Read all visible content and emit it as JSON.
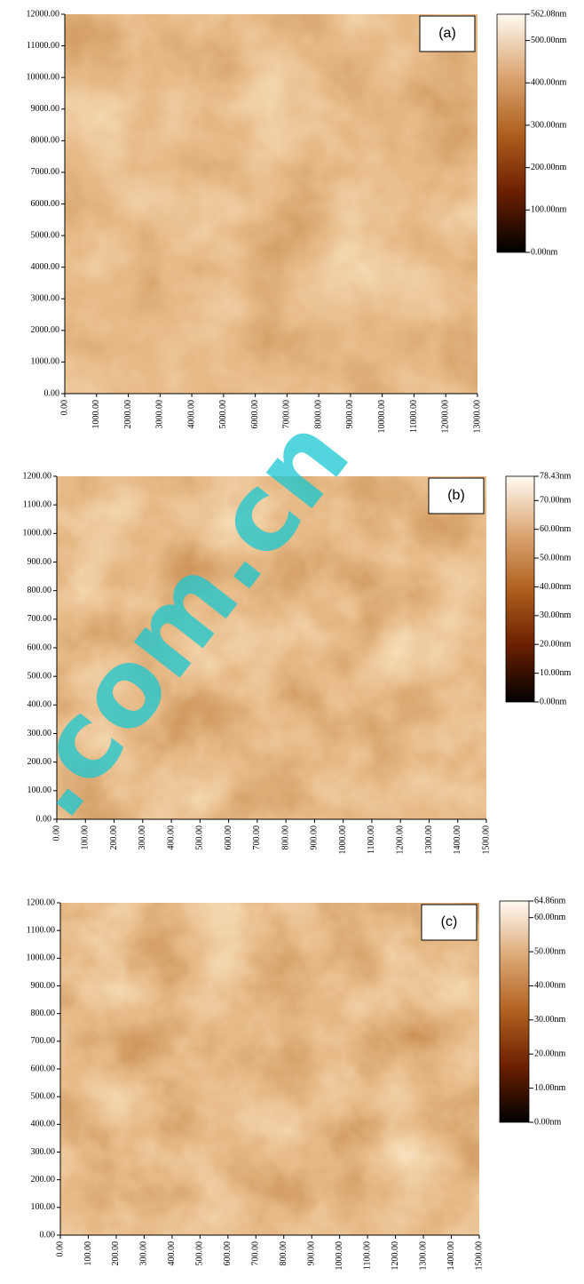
{
  "chart_data": [
    {
      "type": "image",
      "panel_label": "(a)",
      "xlim": [
        0,
        13000
      ],
      "ylim": [
        0,
        12000
      ],
      "zlim": [
        0,
        562.08
      ],
      "xticks": [
        {
          "value": 0,
          "label": "0.00"
        },
        {
          "value": 1000,
          "label": "1000.00"
        },
        {
          "value": 2000,
          "label": "2000.00"
        },
        {
          "value": 3000,
          "label": "3000.00"
        },
        {
          "value": 4000,
          "label": "4000.00"
        },
        {
          "value": 5000,
          "label": "5000.00"
        },
        {
          "value": 6000,
          "label": "6000.00"
        },
        {
          "value": 7000,
          "label": "7000.00"
        },
        {
          "value": 8000,
          "label": "8000.00"
        },
        {
          "value": 9000,
          "label": "9000.00"
        },
        {
          "value": 10000,
          "label": "10000.00"
        },
        {
          "value": 11000,
          "label": "11000.00"
        },
        {
          "value": 12000,
          "label": "12000.00"
        },
        {
          "value": 13000,
          "label": "13000.00"
        }
      ],
      "yticks": [
        {
          "value": 0,
          "label": "0.00"
        },
        {
          "value": 1000,
          "label": "1000.00"
        },
        {
          "value": 2000,
          "label": "2000.00"
        },
        {
          "value": 3000,
          "label": "3000.00"
        },
        {
          "value": 4000,
          "label": "4000.00"
        },
        {
          "value": 5000,
          "label": "5000.00"
        },
        {
          "value": 6000,
          "label": "6000.00"
        },
        {
          "value": 7000,
          "label": "7000.00"
        },
        {
          "value": 8000,
          "label": "8000.00"
        },
        {
          "value": 9000,
          "label": "9000.00"
        },
        {
          "value": 10000,
          "label": "10000.00"
        },
        {
          "value": 11000,
          "label": "11000.00"
        },
        {
          "value": 12000,
          "label": "12000.00"
        }
      ],
      "zticks": [
        {
          "value": 0,
          "label": "0.00nm"
        },
        {
          "value": 100,
          "label": "100.00nm"
        },
        {
          "value": 200,
          "label": "200.00nm"
        },
        {
          "value": 300,
          "label": "300.00nm"
        },
        {
          "value": 400,
          "label": "400.00nm"
        },
        {
          "value": 500,
          "label": "500.00nm"
        },
        {
          "value": 562.08,
          "label": "562.08nm"
        }
      ]
    },
    {
      "type": "image",
      "panel_label": "(b)",
      "xlim": [
        0,
        1500
      ],
      "ylim": [
        0,
        1200
      ],
      "zlim": [
        0,
        78.43
      ],
      "xticks": [
        {
          "value": 0,
          "label": "0.00"
        },
        {
          "value": 100,
          "label": "100.00"
        },
        {
          "value": 200,
          "label": "200.00"
        },
        {
          "value": 300,
          "label": "300.00"
        },
        {
          "value": 400,
          "label": "400.00"
        },
        {
          "value": 500,
          "label": "500.00"
        },
        {
          "value": 600,
          "label": "600.00"
        },
        {
          "value": 700,
          "label": "700.00"
        },
        {
          "value": 800,
          "label": "800.00"
        },
        {
          "value": 900,
          "label": "900.00"
        },
        {
          "value": 1000,
          "label": "1000.00"
        },
        {
          "value": 1100,
          "label": "1100.00"
        },
        {
          "value": 1200,
          "label": "1200.00"
        },
        {
          "value": 1300,
          "label": "1300.00"
        },
        {
          "value": 1400,
          "label": "1400.00"
        },
        {
          "value": 1500,
          "label": "1500.00"
        }
      ],
      "yticks": [
        {
          "value": 0,
          "label": "0.00"
        },
        {
          "value": 100,
          "label": "100.00"
        },
        {
          "value": 200,
          "label": "200.00"
        },
        {
          "value": 300,
          "label": "300.00"
        },
        {
          "value": 400,
          "label": "400.00"
        },
        {
          "value": 500,
          "label": "500.00"
        },
        {
          "value": 600,
          "label": "600.00"
        },
        {
          "value": 700,
          "label": "700.00"
        },
        {
          "value": 800,
          "label": "800.00"
        },
        {
          "value": 900,
          "label": "900.00"
        },
        {
          "value": 1000,
          "label": "1000.00"
        },
        {
          "value": 1100,
          "label": "1100.00"
        },
        {
          "value": 1200,
          "label": "1200.00"
        }
      ],
      "zticks": [
        {
          "value": 0,
          "label": "0.00nm"
        },
        {
          "value": 10,
          "label": "10.00nm"
        },
        {
          "value": 20,
          "label": "20.00nm"
        },
        {
          "value": 30,
          "label": "30.00nm"
        },
        {
          "value": 40,
          "label": "40.00nm"
        },
        {
          "value": 50,
          "label": "50.00nm"
        },
        {
          "value": 60,
          "label": "60.00nm"
        },
        {
          "value": 70,
          "label": "70.00nm"
        },
        {
          "value": 78.43,
          "label": "78.43nm"
        }
      ]
    },
    {
      "type": "image",
      "panel_label": "(c)",
      "xlim": [
        0,
        1500
      ],
      "ylim": [
        0,
        1200
      ],
      "zlim": [
        0,
        64.86
      ],
      "xticks": [
        {
          "value": 0,
          "label": "0.00"
        },
        {
          "value": 100,
          "label": "100.00"
        },
        {
          "value": 200,
          "label": "200.00"
        },
        {
          "value": 300,
          "label": "300.00"
        },
        {
          "value": 400,
          "label": "400.00"
        },
        {
          "value": 500,
          "label": "500.00"
        },
        {
          "value": 600,
          "label": "600.00"
        },
        {
          "value": 700,
          "label": "700.00"
        },
        {
          "value": 800,
          "label": "800.00"
        },
        {
          "value": 900,
          "label": "900.00"
        },
        {
          "value": 1000,
          "label": "1000.00"
        },
        {
          "value": 1100,
          "label": "1100.00"
        },
        {
          "value": 1200,
          "label": "1200.00"
        },
        {
          "value": 1300,
          "label": "1300.00"
        },
        {
          "value": 1400,
          "label": "1400.00"
        },
        {
          "value": 1500,
          "label": "1500.00"
        }
      ],
      "yticks": [
        {
          "value": 0,
          "label": "0.00"
        },
        {
          "value": 100,
          "label": "100.00"
        },
        {
          "value": 200,
          "label": "200.00"
        },
        {
          "value": 300,
          "label": "300.00"
        },
        {
          "value": 400,
          "label": "400.00"
        },
        {
          "value": 500,
          "label": "500.00"
        },
        {
          "value": 600,
          "label": "600.00"
        },
        {
          "value": 700,
          "label": "700.00"
        },
        {
          "value": 800,
          "label": "800.00"
        },
        {
          "value": 900,
          "label": "900.00"
        },
        {
          "value": 1000,
          "label": "1000.00"
        },
        {
          "value": 1100,
          "label": "1100.00"
        },
        {
          "value": 1200,
          "label": "1200.00"
        }
      ],
      "zticks": [
        {
          "value": 0,
          "label": "0.00nm"
        },
        {
          "value": 10,
          "label": "10.00nm"
        },
        {
          "value": 20,
          "label": "20.00nm"
        },
        {
          "value": 30,
          "label": "30.00nm"
        },
        {
          "value": 40,
          "label": "40.00nm"
        },
        {
          "value": 50,
          "label": "50.00nm"
        },
        {
          "value": 60,
          "label": "60.00nm"
        },
        {
          "value": 64.86,
          "label": "64.86nm"
        }
      ]
    }
  ],
  "watermark": ".com.cn"
}
